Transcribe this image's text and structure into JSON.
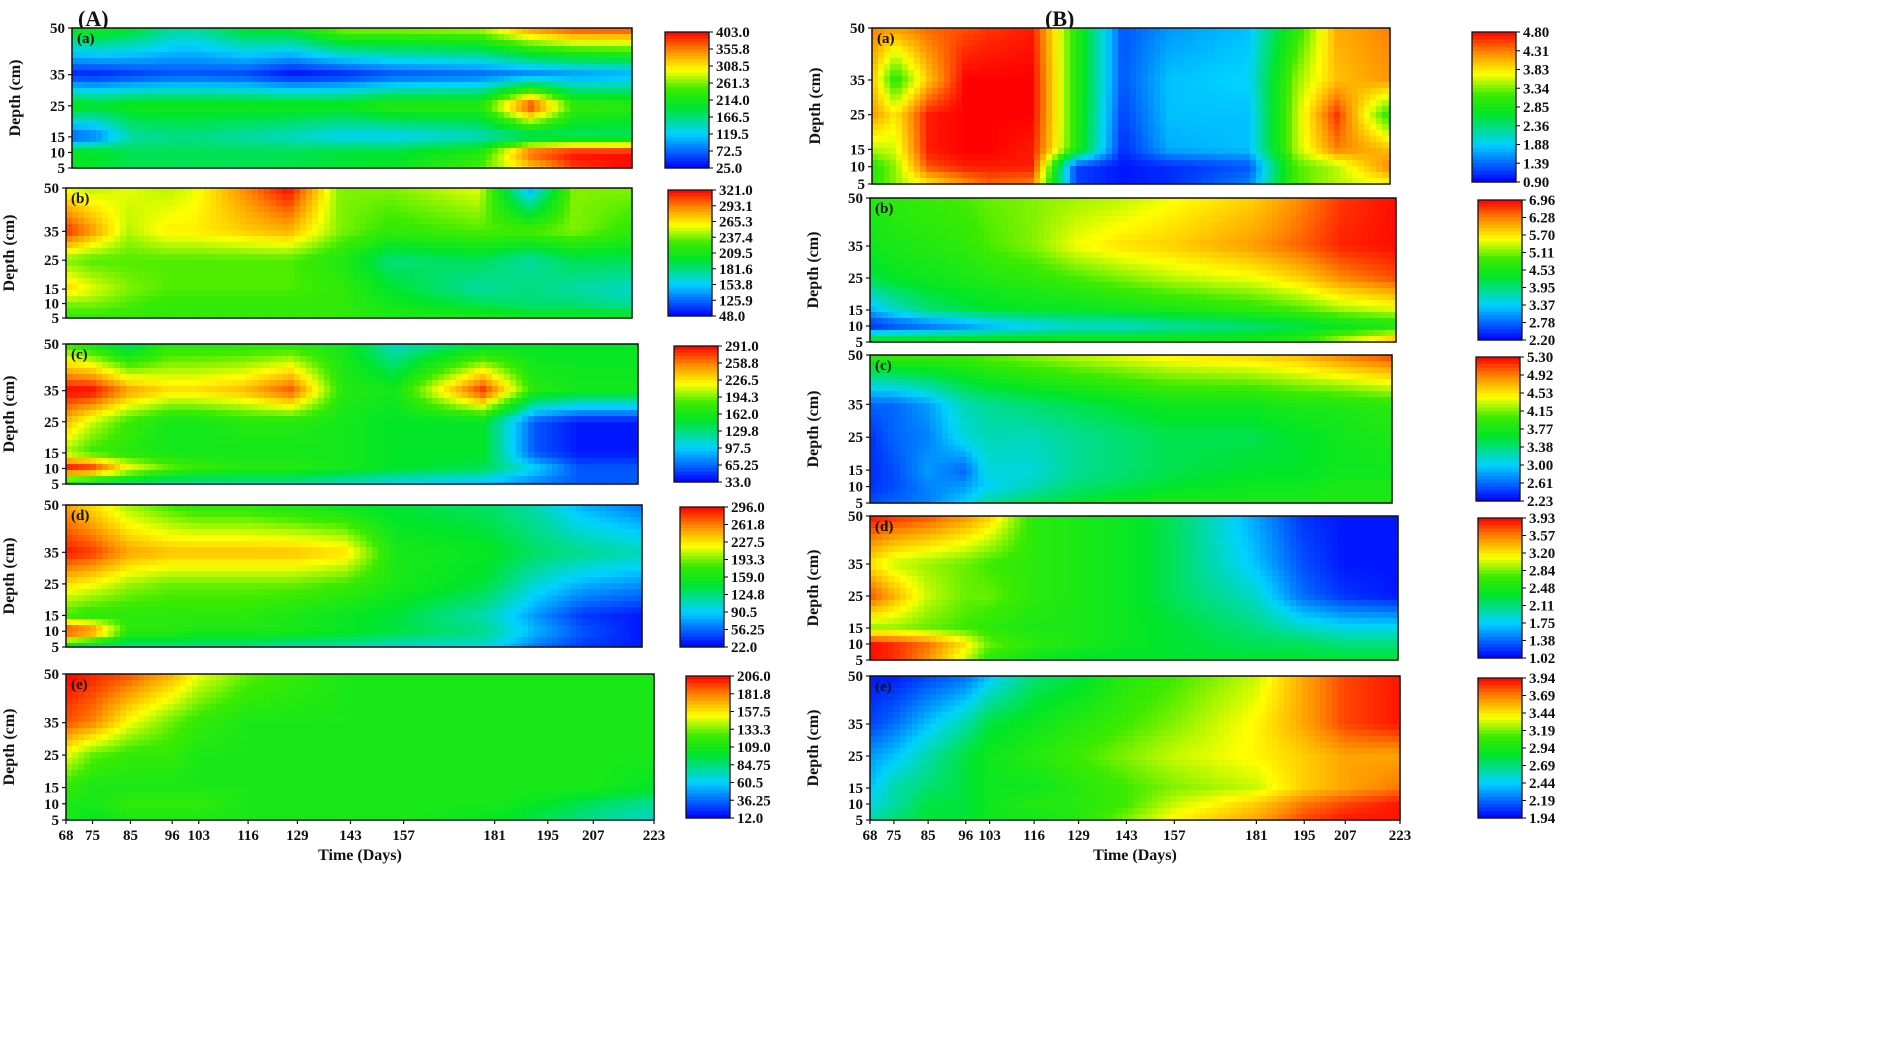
{
  "groups": [
    {
      "label": "(A)"
    },
    {
      "label": "(B)"
    }
  ],
  "axes": {
    "ylabel": "Depth (cm)",
    "xlabel": "Time (Days)",
    "xticks": [
      "68",
      "75",
      "85",
      "96",
      "103",
      "116",
      "129",
      "143",
      "157",
      "181",
      "195",
      "207",
      "223"
    ],
    "yticks": [
      "5",
      "10",
      "15",
      "25",
      "35",
      "50"
    ]
  },
  "chart_data": [
    {
      "type": "heatmap",
      "group": "A",
      "panel": "(a)",
      "x": [
        68,
        75,
        85,
        96,
        103,
        116,
        129,
        143,
        157,
        181,
        195,
        207,
        223
      ],
      "y": [
        5,
        10,
        15,
        25,
        35,
        50
      ],
      "ylim": [
        5,
        50
      ],
      "colorbar_ticks": [
        "403.0",
        "355.8",
        "308.5",
        "261.3",
        "214.0",
        "166.5",
        "119.5",
        "72.5",
        "25.0"
      ],
      "vmin": 25.0,
      "vmax": 403.0,
      "z": [
        [
          200,
          190,
          180,
          180,
          180,
          180,
          185,
          190,
          200,
          250,
          320,
          380,
          400
        ],
        [
          200,
          200,
          180,
          180,
          180,
          180,
          180,
          190,
          190,
          220,
          370,
          400,
          400
        ],
        [
          60,
          80,
          150,
          160,
          160,
          150,
          140,
          120,
          120,
          140,
          160,
          170,
          170
        ],
        [
          210,
          200,
          210,
          210,
          210,
          210,
          210,
          210,
          230,
          230,
          390,
          240,
          230
        ],
        [
          40,
          40,
          50,
          60,
          60,
          55,
          30,
          40,
          60,
          70,
          80,
          90,
          100
        ],
        [
          210,
          220,
          200,
          160,
          160,
          200,
          210,
          270,
          270,
          280,
          350,
          380,
          380
        ]
      ]
    },
    {
      "type": "heatmap",
      "group": "A",
      "panel": "(b)",
      "x": [
        68,
        75,
        85,
        96,
        103,
        116,
        129,
        143,
        157,
        181,
        195,
        207,
        223
      ],
      "y": [
        5,
        10,
        15,
        25,
        35,
        50
      ],
      "ylim": [
        5,
        50
      ],
      "colorbar_ticks": [
        "321.0",
        "293.1",
        "265.3",
        "237.4",
        "209.5",
        "181.6",
        "153.8",
        "125.9",
        "48.0"
      ],
      "vmin": 48.0,
      "vmax": 321.0,
      "z": [
        [
          200,
          200,
          200,
          200,
          200,
          200,
          200,
          200,
          190,
          190,
          180,
          180,
          180
        ],
        [
          220,
          220,
          210,
          200,
          200,
          200,
          200,
          200,
          180,
          160,
          150,
          150,
          140
        ],
        [
          260,
          240,
          220,
          210,
          210,
          210,
          210,
          200,
          170,
          140,
          150,
          140,
          130
        ],
        [
          220,
          210,
          210,
          210,
          210,
          210,
          210,
          190,
          150,
          160,
          140,
          160,
          160
        ],
        [
          310,
          280,
          230,
          250,
          250,
          260,
          270,
          220,
          200,
          210,
          210,
          220,
          200
        ],
        [
          240,
          230,
          240,
          230,
          240,
          280,
          320,
          220,
          220,
          240,
          100,
          220,
          220
        ]
      ]
    },
    {
      "type": "heatmap",
      "group": "A",
      "panel": "(c)",
      "x": [
        68,
        75,
        85,
        96,
        103,
        116,
        129,
        143,
        157,
        181,
        195,
        207,
        223
      ],
      "y": [
        5,
        10,
        15,
        25,
        35,
        50
      ],
      "ylim": [
        5,
        50
      ],
      "colorbar_ticks": [
        "291.0",
        "258.8",
        "226.5",
        "194.3",
        "162.0",
        "129.8",
        "97.5",
        "65.25",
        "33.0"
      ],
      "vmin": 33.0,
      "vmax": 291.0,
      "z": [
        [
          150,
          140,
          130,
          120,
          120,
          120,
          120,
          110,
          100,
          90,
          70,
          60,
          60
        ],
        [
          290,
          280,
          220,
          190,
          180,
          170,
          170,
          160,
          150,
          140,
          100,
          60,
          60
        ],
        [
          200,
          180,
          170,
          160,
          160,
          160,
          160,
          160,
          150,
          150,
          60,
          40,
          40
        ],
        [
          240,
          210,
          180,
          160,
          160,
          170,
          170,
          160,
          150,
          150,
          60,
          40,
          40
        ],
        [
          290,
          290,
          250,
          230,
          230,
          240,
          270,
          170,
          160,
          280,
          170,
          160,
          160
        ],
        [
          180,
          160,
          130,
          170,
          170,
          170,
          170,
          160,
          110,
          140,
          150,
          150,
          150
        ]
      ]
    },
    {
      "type": "heatmap",
      "group": "A",
      "panel": "(d)",
      "x": [
        68,
        75,
        85,
        96,
        103,
        116,
        129,
        143,
        157,
        181,
        195,
        207,
        223
      ],
      "y": [
        5,
        10,
        15,
        25,
        35,
        50
      ],
      "ylim": [
        5,
        50
      ],
      "colorbar_ticks": [
        "296.0",
        "261.8",
        "227.5",
        "193.3",
        "159.0",
        "124.8",
        "90.5",
        "56.25",
        "22.0"
      ],
      "vmin": 22.0,
      "vmax": 296.0,
      "z": [
        [
          140,
          120,
          120,
          120,
          120,
          120,
          110,
          110,
          100,
          100,
          60,
          40,
          30
        ],
        [
          290,
          270,
          170,
          170,
          160,
          160,
          160,
          150,
          140,
          120,
          80,
          50,
          30
        ],
        [
          180,
          170,
          170,
          170,
          170,
          170,
          160,
          150,
          140,
          110,
          70,
          40,
          30
        ],
        [
          230,
          220,
          200,
          190,
          190,
          190,
          190,
          180,
          160,
          140,
          100,
          80,
          70
        ],
        [
          290,
          280,
          250,
          240,
          240,
          240,
          240,
          230,
          160,
          150,
          130,
          120,
          110
        ],
        [
          250,
          230,
          200,
          180,
          170,
          170,
          160,
          150,
          140,
          130,
          110,
          80,
          60
        ]
      ]
    },
    {
      "type": "heatmap",
      "group": "A",
      "panel": "(e)",
      "x": [
        68,
        75,
        85,
        96,
        103,
        116,
        129,
        143,
        157,
        181,
        195,
        207,
        223
      ],
      "y": [
        5,
        10,
        15,
        25,
        35,
        50
      ],
      "ylim": [
        5,
        50
      ],
      "colorbar_ticks": [
        "206.0",
        "181.8",
        "157.5",
        "133.3",
        "109.0",
        "84.75",
        "60.5",
        "36.25",
        "12.0"
      ],
      "vmin": 12.0,
      "vmax": 206.0,
      "z": [
        [
          110,
          100,
          110,
          110,
          110,
          110,
          110,
          110,
          110,
          100,
          90,
          80,
          70
        ],
        [
          110,
          110,
          120,
          120,
          120,
          110,
          110,
          110,
          110,
          110,
          100,
          90,
          80
        ],
        [
          120,
          110,
          110,
          110,
          110,
          110,
          110,
          110,
          110,
          110,
          110,
          110,
          100
        ],
        [
          150,
          130,
          120,
          120,
          110,
          110,
          110,
          110,
          110,
          110,
          110,
          110,
          110
        ],
        [
          190,
          180,
          150,
          130,
          120,
          110,
          110,
          110,
          110,
          110,
          110,
          110,
          110
        ],
        [
          206,
          200,
          190,
          170,
          150,
          130,
          120,
          110,
          110,
          110,
          110,
          110,
          110
        ]
      ]
    },
    {
      "type": "heatmap",
      "group": "B",
      "panel": "(a)",
      "x": [
        68,
        75,
        85,
        96,
        103,
        116,
        129,
        143,
        157,
        181,
        195,
        207,
        223
      ],
      "y": [
        5,
        10,
        15,
        25,
        35,
        50
      ],
      "ylim": [
        5,
        50
      ],
      "colorbar_ticks": [
        "4.80",
        "4.31",
        "3.83",
        "3.34",
        "2.85",
        "2.36",
        "1.88",
        "1.39",
        "0.90"
      ],
      "vmin": 0.9,
      "vmax": 4.8,
      "z": [
        [
          3.0,
          3.4,
          3.8,
          4.2,
          4.4,
          4.3,
          1.2,
          1.0,
          1.1,
          1.5,
          3.2,
          3.5,
          3.7
        ],
        [
          3.0,
          3.4,
          4.5,
          4.7,
          4.7,
          4.7,
          1.2,
          1.0,
          1.1,
          1.3,
          3.2,
          3.5,
          4.3
        ],
        [
          3.5,
          3.6,
          4.7,
          4.8,
          4.8,
          4.7,
          3.0,
          1.1,
          1.7,
          1.8,
          3.5,
          4.3,
          4.0
        ],
        [
          4.2,
          3.8,
          4.7,
          4.8,
          4.8,
          4.8,
          3.0,
          1.2,
          1.8,
          1.8,
          3.5,
          4.6,
          3.0
        ],
        [
          4.0,
          3.0,
          4.0,
          4.8,
          4.8,
          4.8,
          3.0,
          1.3,
          1.8,
          1.9,
          3.4,
          4.0,
          4.2
        ],
        [
          4.3,
          4.2,
          4.4,
          4.5,
          4.6,
          4.7,
          3.0,
          1.3,
          1.6,
          1.8,
          3.0,
          4.1,
          4.3
        ]
      ]
    },
    {
      "type": "heatmap",
      "group": "B",
      "panel": "(b)",
      "x": [
        68,
        75,
        85,
        96,
        103,
        116,
        129,
        143,
        157,
        181,
        195,
        207,
        223
      ],
      "y": [
        5,
        10,
        15,
        25,
        35,
        50
      ],
      "ylim": [
        5,
        50
      ],
      "colorbar_ticks": [
        "6.96",
        "6.28",
        "5.70",
        "5.11",
        "4.53",
        "3.95",
        "3.37",
        "2.78",
        "2.20"
      ],
      "vmin": 2.2,
      "vmax": 6.96,
      "z": [
        [
          4.6,
          4.6,
          4.6,
          4.6,
          4.6,
          4.6,
          4.6,
          4.6,
          4.6,
          4.6,
          4.8,
          5.5,
          6.2
        ],
        [
          2.4,
          2.6,
          2.8,
          3.0,
          3.2,
          3.4,
          3.6,
          3.6,
          3.8,
          4.0,
          4.2,
          4.4,
          4.6
        ],
        [
          3.2,
          3.6,
          4.0,
          4.2,
          4.3,
          4.4,
          4.4,
          4.5,
          4.6,
          4.8,
          5.0,
          5.3,
          5.5
        ],
        [
          4.2,
          4.4,
          4.5,
          4.6,
          4.7,
          4.8,
          5.0,
          5.2,
          5.4,
          5.6,
          5.9,
          6.3,
          6.6
        ],
        [
          4.5,
          4.6,
          4.7,
          4.8,
          5.0,
          5.2,
          5.6,
          5.8,
          5.9,
          6.2,
          6.5,
          6.8,
          6.9
        ],
        [
          4.7,
          4.8,
          4.9,
          5.0,
          5.1,
          5.2,
          5.3,
          5.4,
          5.6,
          5.9,
          6.3,
          6.7,
          6.9
        ]
      ]
    },
    {
      "type": "heatmap",
      "group": "B",
      "panel": "(c)",
      "x": [
        68,
        75,
        85,
        96,
        103,
        116,
        129,
        143,
        157,
        181,
        195,
        207,
        223
      ],
      "y": [
        5,
        10,
        15,
        25,
        35,
        50
      ],
      "ylim": [
        5,
        50
      ],
      "colorbar_ticks": [
        "5.30",
        "4.92",
        "4.53",
        "4.15",
        "3.77",
        "3.38",
        "3.00",
        "2.61",
        "2.23"
      ],
      "vmin": 2.23,
      "vmax": 5.3,
      "z": [
        [
          2.5,
          2.6,
          2.7,
          3.0,
          3.3,
          3.5,
          3.6,
          3.7,
          3.8,
          3.8,
          3.8,
          3.8,
          3.8
        ],
        [
          2.4,
          2.5,
          2.7,
          2.8,
          3.0,
          3.2,
          3.4,
          3.5,
          3.6,
          3.7,
          3.7,
          3.8,
          3.8
        ],
        [
          2.4,
          2.5,
          2.8,
          2.6,
          3.1,
          3.1,
          3.3,
          3.4,
          3.5,
          3.6,
          3.6,
          3.7,
          3.7
        ],
        [
          2.4,
          2.6,
          2.7,
          3.1,
          3.2,
          3.2,
          3.3,
          3.4,
          3.5,
          3.5,
          3.6,
          3.7,
          3.8
        ],
        [
          2.6,
          2.6,
          2.8,
          3.2,
          3.3,
          3.4,
          3.5,
          3.6,
          3.7,
          3.7,
          3.8,
          3.8,
          3.9
        ],
        [
          3.9,
          4.0,
          4.0,
          4.0,
          4.1,
          4.2,
          4.3,
          4.4,
          4.5,
          4.6,
          4.7,
          4.9,
          5.1
        ]
      ]
    },
    {
      "type": "heatmap",
      "group": "B",
      "panel": "(d)",
      "x": [
        68,
        75,
        85,
        96,
        103,
        116,
        129,
        143,
        157,
        181,
        195,
        207,
        223
      ],
      "y": [
        5,
        10,
        15,
        25,
        35,
        50
      ],
      "ylim": [
        5,
        50
      ],
      "colorbar_ticks": [
        "3.93",
        "3.57",
        "3.20",
        "2.84",
        "2.48",
        "2.11",
        "1.75",
        "1.38",
        "1.02"
      ],
      "vmin": 1.02,
      "vmax": 3.93,
      "z": [
        [
          3.9,
          3.8,
          3.5,
          3.0,
          2.6,
          2.4,
          2.3,
          2.3,
          2.3,
          2.3,
          2.3,
          2.3,
          2.3
        ],
        [
          3.9,
          3.8,
          3.6,
          3.2,
          2.8,
          2.6,
          2.5,
          2.4,
          2.3,
          2.2,
          2.2,
          2.1,
          2.1
        ],
        [
          2.9,
          2.9,
          2.8,
          2.7,
          2.6,
          2.5,
          2.5,
          2.4,
          2.3,
          2.1,
          1.9,
          1.8,
          1.8
        ],
        [
          3.7,
          3.4,
          3.0,
          2.8,
          2.8,
          2.6,
          2.5,
          2.4,
          2.2,
          1.9,
          1.4,
          1.2,
          1.1
        ],
        [
          3.2,
          3.0,
          2.9,
          2.8,
          2.7,
          2.6,
          2.5,
          2.4,
          2.2,
          1.7,
          1.3,
          1.1,
          1.1
        ],
        [
          3.9,
          3.8,
          3.7,
          3.5,
          3.3,
          2.6,
          2.5,
          2.4,
          2.2,
          1.6,
          1.2,
          1.1,
          1.1
        ]
      ]
    },
    {
      "type": "heatmap",
      "group": "B",
      "panel": "(e)",
      "x": [
        68,
        75,
        85,
        96,
        103,
        116,
        129,
        143,
        157,
        181,
        195,
        207,
        223
      ],
      "y": [
        5,
        10,
        15,
        25,
        35,
        50
      ],
      "ylim": [
        5,
        50
      ],
      "colorbar_ticks": [
        "3.94",
        "3.69",
        "3.44",
        "3.19",
        "2.94",
        "2.69",
        "2.44",
        "2.19",
        "1.94"
      ],
      "vmin": 1.94,
      "vmax": 3.94,
      "z": [
        [
          2.6,
          2.7,
          2.8,
          2.8,
          2.9,
          2.9,
          3.0,
          3.2,
          3.4,
          3.6,
          3.8,
          3.9,
          3.9
        ],
        [
          2.5,
          2.6,
          2.8,
          2.8,
          2.9,
          3.0,
          3.0,
          3.1,
          3.3,
          3.5,
          3.7,
          3.8,
          3.9
        ],
        [
          2.4,
          2.6,
          2.7,
          2.8,
          2.9,
          2.9,
          3.0,
          3.1,
          3.2,
          3.3,
          3.5,
          3.6,
          3.7
        ],
        [
          2.3,
          2.4,
          2.6,
          2.8,
          2.9,
          3.0,
          3.1,
          3.2,
          3.3,
          3.4,
          3.5,
          3.6,
          3.6
        ],
        [
          2.1,
          2.2,
          2.4,
          2.6,
          2.8,
          2.9,
          3.0,
          3.1,
          3.2,
          3.4,
          3.6,
          3.8,
          3.9
        ],
        [
          2.0,
          2.0,
          2.1,
          2.2,
          2.4,
          2.7,
          2.8,
          3.0,
          3.1,
          3.3,
          3.6,
          3.8,
          3.9
        ]
      ]
    }
  ]
}
